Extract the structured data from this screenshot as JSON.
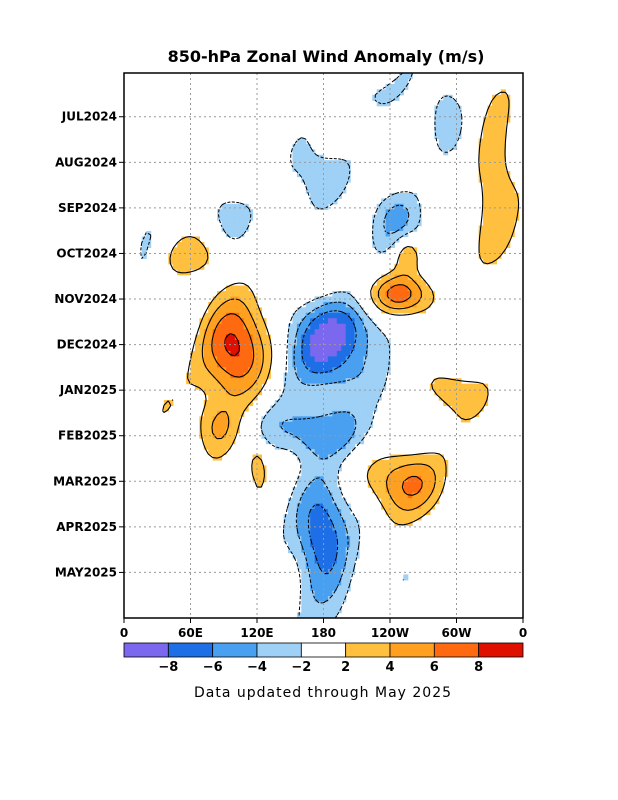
{
  "chart_data": {
    "type": "heatmap",
    "title": "850-hPa Zonal Wind Anomaly (m/s)",
    "x_ticks": [
      "0",
      "60E",
      "120E",
      "180",
      "120W",
      "60W",
      "0"
    ],
    "x_tick_lons": [
      0,
      60,
      120,
      180,
      240,
      300,
      360
    ],
    "xlim": [
      0,
      360
    ],
    "y_ticks": [
      "JUL2024",
      "AUG2024",
      "SEP2024",
      "OCT2024",
      "NOV2024",
      "DEC2024",
      "JAN2025",
      "FEB2025",
      "MAR2025",
      "APR2025",
      "MAY2025"
    ],
    "y_tick_months": [
      1,
      2,
      3,
      4,
      5,
      6,
      7,
      8,
      9,
      10,
      11
    ],
    "ylim": [
      0.04,
      12.0
    ],
    "grid": true,
    "colorbar": {
      "levels": [
        -8,
        -6,
        -4,
        -2,
        2,
        4,
        6,
        8
      ],
      "labels": [
        "−8",
        "−6",
        "−4",
        "−2",
        "2",
        "4",
        "6",
        "8"
      ],
      "colors": [
        "#7b68ee",
        "#1e6fe6",
        "#4aa0f0",
        "#9fd0f5",
        "#ffffff",
        "#ffc040",
        "#ffa020",
        "#ff6a10",
        "#e01000"
      ]
    },
    "anomaly_blobs": [
      {
        "lon": 100,
        "t": 6.2,
        "rl": 30,
        "rt": 1.1,
        "v": 8.5
      },
      {
        "lon": 120,
        "t": 8.5,
        "rl": 10,
        "rt": 0.5,
        "v": 3
      },
      {
        "lon": 85,
        "t": 7.8,
        "rl": 20,
        "rt": 0.6,
        "v": 4
      },
      {
        "lon": 185,
        "t": 6.3,
        "rl": 40,
        "rt": 1.0,
        "v": -7
      },
      {
        "lon": 175,
        "t": 7.9,
        "rl": 45,
        "rt": 0.6,
        "v": -6
      },
      {
        "lon": 178,
        "t": 10.2,
        "rl": 25,
        "rt": 1.1,
        "v": -7.5
      },
      {
        "lon": 185,
        "t": 11.5,
        "rl": 30,
        "rt": 1.0,
        "v": -3
      },
      {
        "lon": 250,
        "t": 4.9,
        "rl": 30,
        "rt": 0.45,
        "v": 6.5
      },
      {
        "lon": 255,
        "t": 9.0,
        "rl": 35,
        "rt": 0.7,
        "v": 5.2
      },
      {
        "lon": 290,
        "t": 7.0,
        "rl": 25,
        "rt": 0.5,
        "v": 3.5
      },
      {
        "lon": 335,
        "t": 2.2,
        "rl": 20,
        "rt": 1.4,
        "v": 4.5
      },
      {
        "lon": 290,
        "t": 1.0,
        "rl": 15,
        "rt": 0.8,
        "v": -3.5
      },
      {
        "lon": 245,
        "t": 3.2,
        "rl": 25,
        "rt": 0.7,
        "v": -3.5
      },
      {
        "lon": 170,
        "t": 2.5,
        "rl": 30,
        "rt": 1.0,
        "v": -2.5
      },
      {
        "lon": 255,
        "t": 4.0,
        "rl": 12,
        "rt": 0.4,
        "v": 4.5
      },
      {
        "lon": 20,
        "t": 3.5,
        "rl": 20,
        "rt": 1.2,
        "v": -2.5
      },
      {
        "lon": 65,
        "t": 4.1,
        "rl": 25,
        "rt": 0.4,
        "v": 3
      },
      {
        "lon": 210,
        "t": 0.5,
        "rl": 30,
        "rt": 0.5,
        "v": -2.5
      },
      {
        "lon": 90,
        "t": 3.0,
        "rl": 20,
        "rt": 0.5,
        "v": -2.5
      },
      {
        "lon": 200,
        "t": 5.6,
        "rl": 50,
        "rt": 0.6,
        "v": -3
      }
    ]
  },
  "colorbar_labels": [
    "−8",
    "−6",
    "−4",
    "−2",
    "2",
    "4",
    "6",
    "8"
  ],
  "footer_text": "Data updated through May 2025"
}
